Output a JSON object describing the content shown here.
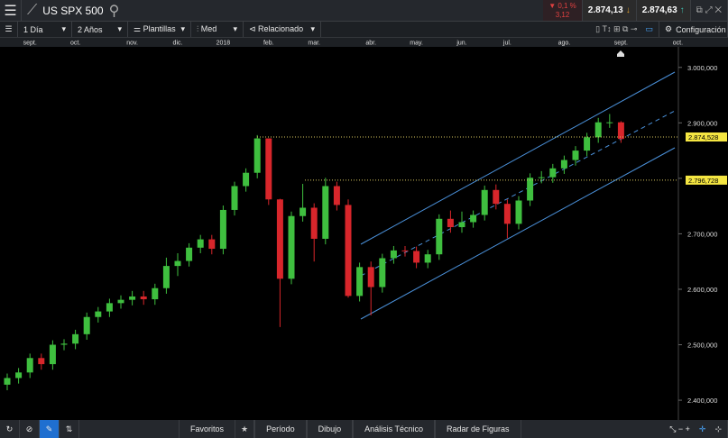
{
  "header": {
    "symbol": "US SPX 500",
    "change_pct": "0,1 %",
    "change_abs": "3,12",
    "sell": "2.874,13",
    "buy": "2.874,63"
  },
  "toolbar": {
    "interval": "1 Día",
    "range": "2 Años",
    "templates": "Plantillas",
    "style": "Med",
    "related": "Relacionado",
    "settings": "Configuración"
  },
  "chart_data": {
    "type": "candlestick",
    "categories": [
      null,
      null,
      "sept.",
      null,
      null,
      null,
      "oct.",
      null,
      null,
      null,
      null,
      "nov.",
      null,
      null,
      null,
      "dic.",
      null,
      null,
      null,
      "2018",
      null,
      null,
      null,
      "feb.",
      null,
      null,
      null,
      "mar.",
      null,
      null,
      null,
      null,
      "abr.",
      null,
      null,
      null,
      "may.",
      null,
      null,
      null,
      "jun.",
      null,
      null,
      null,
      "jul.",
      null,
      null,
      null,
      null,
      "ago.",
      null,
      null,
      null,
      null,
      "sept.",
      null,
      null,
      null,
      null,
      "oct."
    ],
    "open": [
      2428,
      2440,
      2450,
      2476,
      2465,
      2500,
      2502,
      2519,
      2550,
      2560,
      2575,
      2581,
      2587,
      2582,
      2602,
      2642,
      2651,
      2675,
      2690,
      2673,
      2743,
      2786,
      2810,
      2872,
      2762,
      2619,
      2732,
      2747,
      2691,
      2786,
      2752,
      2588,
      2640,
      2604,
      2656,
      2670,
      2669,
      2648,
      2663,
      2727,
      2712,
      2721,
      2734,
      2779,
      2754,
      2718,
      2760,
      2801,
      2802,
      2818,
      2833,
      2850,
      2874,
      2901,
      2901,
      null,
      null,
      null,
      null,
      null
    ],
    "high": [
      2448,
      2458,
      2484,
      2484,
      2508,
      2510,
      2527,
      2558,
      2568,
      2583,
      2589,
      2597,
      2597,
      2610,
      2657,
      2665,
      2683,
      2698,
      2698,
      2751,
      2794,
      2818,
      2878,
      2872,
      2763,
      2740,
      2790,
      2755,
      2801,
      2794,
      2762,
      2648,
      2650,
      2664,
      2678,
      2678,
      2677,
      2671,
      2735,
      2742,
      2740,
      2742,
      2787,
      2789,
      2762,
      2768,
      2809,
      2813,
      2826,
      2841,
      2858,
      2882,
      2909,
      2916,
      2903,
      null,
      null,
      null,
      null,
      null
    ],
    "low": [
      2418,
      2430,
      2440,
      2455,
      2455,
      2490,
      2492,
      2509,
      2540,
      2550,
      2565,
      2571,
      2572,
      2572,
      2592,
      2624,
      2641,
      2665,
      2663,
      2663,
      2733,
      2776,
      2800,
      2752,
      2532,
      2609,
      2722,
      2650,
      2681,
      2742,
      2585,
      2578,
      2553,
      2594,
      2646,
      2659,
      2638,
      2638,
      2653,
      2702,
      2702,
      2711,
      2724,
      2744,
      2692,
      2708,
      2750,
      2791,
      2792,
      2808,
      2823,
      2840,
      2864,
      2891,
      2864,
      null,
      null,
      null,
      null,
      null
    ],
    "close": [
      2440,
      2450,
      2476,
      2465,
      2500,
      2502,
      2519,
      2550,
      2560,
      2575,
      2581,
      2587,
      2582,
      2602,
      2642,
      2651,
      2675,
      2690,
      2673,
      2743,
      2786,
      2810,
      2872,
      2762,
      2619,
      2732,
      2747,
      2691,
      2786,
      2752,
      2588,
      2640,
      2604,
      2656,
      2670,
      2669,
      2648,
      2663,
      2727,
      2712,
      2721,
      2734,
      2779,
      2754,
      2718,
      2760,
      2801,
      2802,
      2818,
      2833,
      2850,
      2874,
      2901,
      2901,
      2871,
      null,
      null,
      null,
      null,
      null
    ],
    "up_color": "#3fbf3f",
    "down_color": "#d8262b",
    "ylim": [
      2366,
      3037
    ],
    "yticks": [
      {
        "value": 2400,
        "label": "2.400,000"
      },
      {
        "value": 2500,
        "label": "2.500,000"
      },
      {
        "value": 2600,
        "label": "2.600,000"
      },
      {
        "value": 2700,
        "label": "2.700,000"
      },
      {
        "value": 2800,
        "label": "2.800,000"
      },
      {
        "value": 2900,
        "label": "2.900,000"
      },
      {
        "value": 3000,
        "label": "3.000,000"
      }
    ],
    "price_lines": [
      {
        "value": 2874.528,
        "label": "2.874,528"
      },
      {
        "value": 2796.728,
        "label": "2.796,728"
      }
    ]
  },
  "footer": {
    "tabs": [
      "Favoritos",
      "Período",
      "Dibujo",
      "Análisis Técnico",
      "Radar de Figuras"
    ]
  }
}
